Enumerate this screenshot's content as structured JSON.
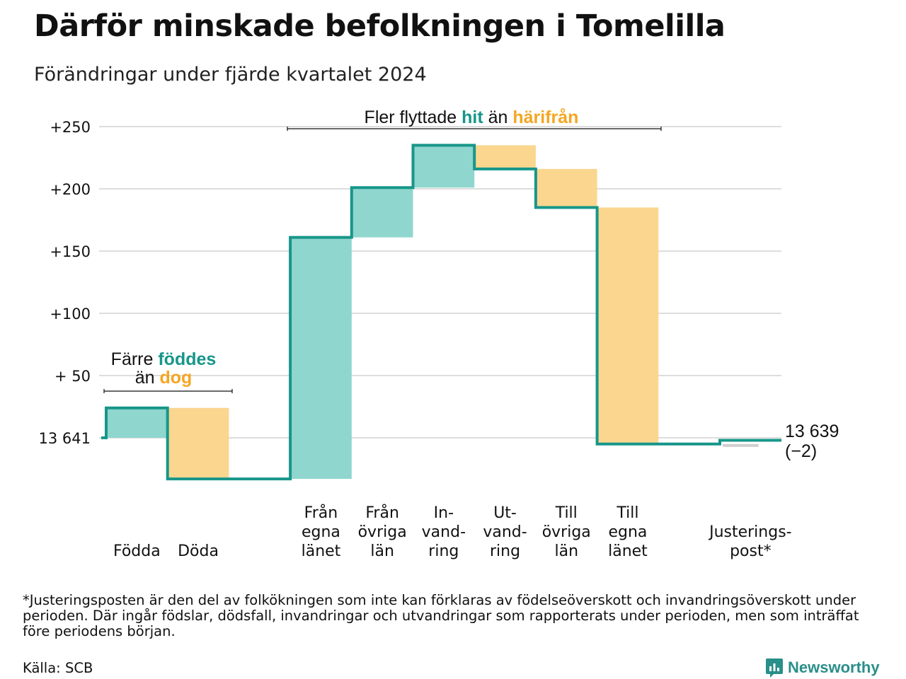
{
  "title": "Därför minskade befolkningen i Tomelilla",
  "subtitle": "Förändringar under fjärde kvartalet 2024",
  "colors": {
    "teal_line": "#17968a",
    "teal_fill": "#8fd6ce",
    "orange_fill": "#fad68f",
    "teal_text": "#17968a",
    "orange_text": "#f5a623",
    "grid": "#dddddd"
  },
  "chart_data": {
    "type": "waterfall",
    "start_value": 13641,
    "start_label": "13 641",
    "end_label": "13 639",
    "end_change": "(−2)",
    "yticks": [
      {
        "value": 50,
        "label": "+ 50"
      },
      {
        "value": 100,
        "label": "+100"
      },
      {
        "value": 150,
        "label": "+150"
      },
      {
        "value": 200,
        "label": "+200"
      },
      {
        "value": 250,
        "label": "+250"
      }
    ],
    "ylim": [
      -40,
      260
    ],
    "steps": [
      {
        "name": "Födda",
        "lines": [
          "Födda"
        ],
        "change": 24,
        "kind": "in"
      },
      {
        "name": "Döda",
        "lines": [
          "Döda"
        ],
        "change": -57,
        "kind": "out"
      },
      {
        "name": "",
        "lines": [],
        "change": 0,
        "kind": "none"
      },
      {
        "name": "Från egna länet",
        "lines": [
          "Från",
          "egna",
          "länet"
        ],
        "change": 194,
        "kind": "in"
      },
      {
        "name": "Från övriga län",
        "lines": [
          "Från",
          "övriga",
          "län"
        ],
        "change": 40,
        "kind": "in"
      },
      {
        "name": "Invandring",
        "lines": [
          "In-",
          "vand-",
          "ring"
        ],
        "change": 34,
        "kind": "in"
      },
      {
        "name": "Utvandring",
        "lines": [
          "Ut-",
          "vand-",
          "ring"
        ],
        "change": -19,
        "kind": "out"
      },
      {
        "name": "Tillövriga län",
        "lines": [
          "Till",
          "övriga",
          "län"
        ],
        "change": -31,
        "kind": "out"
      },
      {
        "name": "Till egna länet",
        "lines": [
          "Till",
          "egna",
          "länet"
        ],
        "change": -190,
        "kind": "out"
      },
      {
        "name": "",
        "lines": [],
        "change": 0,
        "kind": "none"
      },
      {
        "name": "Justeringspost*",
        "lines": [
          "Justerings-",
          "post*"
        ],
        "change": 3,
        "kind": "adj"
      }
    ],
    "annotations": [
      {
        "parts": [
          {
            "text": "Färre ",
            "color": "dark"
          },
          {
            "text": "föddes",
            "color": "teal"
          }
        ]
      },
      {
        "parts": [
          {
            "text": "än ",
            "color": "dark"
          },
          {
            "text": "dog",
            "color": "orange"
          }
        ]
      },
      {
        "parts": [
          {
            "text": "Fler flyttade ",
            "color": "dark"
          },
          {
            "text": "hit",
            "color": "teal"
          },
          {
            "text": "  än ",
            "color": "dark"
          },
          {
            "text": "härifrån",
            "color": "orange"
          }
        ]
      }
    ]
  },
  "footnote": "*Justeringsposten är den del av folkökningen som inte kan förklaras av födelseöverskott och invandringsöverskott under perioden. Där ingår födslar, dödsfall, invandringar och utvandringar som rapporterats under perioden, men som inträffat före periodens början.",
  "source": "Källa: SCB",
  "brand": {
    "name": "Newsworthy",
    "icon": "newsworthy-logo-icon"
  }
}
